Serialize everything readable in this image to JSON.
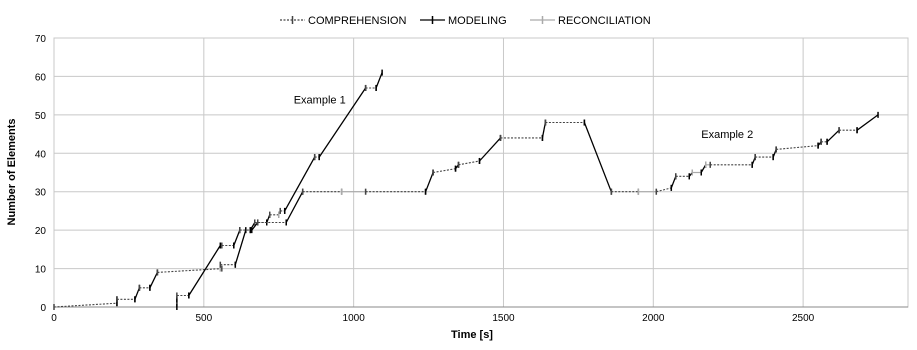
{
  "chart_data": {
    "type": "line",
    "title": "",
    "xlabel": "Time [s]",
    "ylabel": "Number of Elements",
    "xlim": [
      0,
      2850
    ],
    "ylim": [
      0,
      70
    ],
    "x_ticks": [
      0,
      500,
      1000,
      1500,
      2000,
      2500
    ],
    "y_ticks": [
      0,
      10,
      20,
      30,
      40,
      50,
      60,
      70
    ],
    "grid": true,
    "legend_position": "top-center",
    "colors": {
      "comprehension": "#444444",
      "modeling": "#000000",
      "reconciliation": "#aaaaaa",
      "grid": "#c8c8c8"
    },
    "legend": [
      "COMPREHENSION",
      "MODELING",
      "RECONCILIATION"
    ],
    "annotations": [
      {
        "text": "Example 1",
        "x": 800,
        "y": 53
      },
      {
        "text": "Example 2",
        "x": 2160,
        "y": 44
      }
    ],
    "series": [
      {
        "example": "Example 1",
        "segments": [
          {
            "kind": "comprehension",
            "points": [
              [
                0,
                0
              ],
              [
                210,
                1
              ]
            ]
          },
          {
            "kind": "modeling",
            "points": [
              [
                210,
                1
              ],
              [
                210,
                2
              ]
            ]
          },
          {
            "kind": "comprehension",
            "points": [
              [
                210,
                2
              ],
              [
                270,
                2
              ]
            ]
          },
          {
            "kind": "modeling",
            "points": [
              [
                270,
                2
              ],
              [
                285,
                5
              ]
            ]
          },
          {
            "kind": "comprehension",
            "points": [
              [
                285,
                5
              ],
              [
                320,
                5
              ]
            ]
          },
          {
            "kind": "modeling",
            "points": [
              [
                320,
                5
              ],
              [
                345,
                9
              ]
            ]
          },
          {
            "kind": "comprehension",
            "points": [
              [
                345,
                9
              ],
              [
                560,
                10
              ]
            ]
          },
          {
            "kind": "modeling",
            "points": [
              [
                410,
                0
              ],
              [
                410,
                2
              ]
            ]
          },
          {
            "kind": "comprehension",
            "points": [
              [
                410,
                3
              ],
              [
                450,
                3
              ]
            ]
          },
          {
            "kind": "modeling",
            "points": [
              [
                450,
                3
              ],
              [
                555,
                16
              ]
            ]
          },
          {
            "kind": "comprehension",
            "points": [
              [
                560,
                16
              ],
              [
                600,
                16
              ]
            ]
          },
          {
            "kind": "modeling",
            "points": [
              [
                600,
                16
              ],
              [
                620,
                20
              ]
            ]
          },
          {
            "kind": "reconciliation",
            "points": [
              [
                555,
                11
              ],
              [
                555,
                10
              ]
            ]
          },
          {
            "kind": "comprehension",
            "points": [
              [
                555,
                11
              ],
              [
                605,
                11
              ]
            ]
          },
          {
            "kind": "modeling",
            "points": [
              [
                605,
                11
              ],
              [
                640,
                20
              ]
            ]
          },
          {
            "kind": "comprehension",
            "points": [
              [
                620,
                20
              ],
              [
                655,
                20
              ]
            ]
          },
          {
            "kind": "modeling",
            "points": [
              [
                655,
                20
              ],
              [
                670,
                22
              ]
            ]
          },
          {
            "kind": "comprehension",
            "points": [
              [
                670,
                22
              ],
              [
                710,
                22
              ]
            ]
          },
          {
            "kind": "modeling",
            "points": [
              [
                710,
                22
              ],
              [
                720,
                24
              ]
            ]
          },
          {
            "kind": "comprehension",
            "points": [
              [
                720,
                24
              ],
              [
                750,
                24
              ]
            ]
          },
          {
            "kind": "reconciliation",
            "points": [
              [
                750,
                24
              ],
              [
                755,
                25
              ]
            ]
          },
          {
            "kind": "comprehension",
            "points": [
              [
                755,
                25
              ],
              [
                770,
                25
              ]
            ]
          },
          {
            "kind": "modeling",
            "points": [
              [
                660,
                20
              ],
              [
                680,
                22
              ]
            ]
          },
          {
            "kind": "comprehension",
            "points": [
              [
                680,
                22
              ],
              [
                775,
                22
              ]
            ]
          },
          {
            "kind": "modeling",
            "points": [
              [
                775,
                22
              ],
              [
                830,
                30
              ]
            ]
          },
          {
            "kind": "modeling",
            "points": [
              [
                770,
                25
              ],
              [
                870,
                39
              ]
            ]
          },
          {
            "kind": "comprehension",
            "points": [
              [
                870,
                39
              ],
              [
                885,
                39
              ]
            ]
          },
          {
            "kind": "modeling",
            "points": [
              [
                885,
                39
              ],
              [
                1040,
                57
              ]
            ]
          },
          {
            "kind": "comprehension",
            "points": [
              [
                1040,
                57
              ],
              [
                1075,
                57
              ]
            ]
          },
          {
            "kind": "modeling",
            "points": [
              [
                1075,
                57
              ],
              [
                1095,
                61
              ]
            ]
          }
        ]
      },
      {
        "example": "Example 2",
        "segments": [
          {
            "kind": "comprehension",
            "points": [
              [
                830,
                30
              ],
              [
                960,
                30
              ]
            ]
          },
          {
            "kind": "reconciliation",
            "points": [
              [
                960,
                30
              ],
              [
                1040,
                30
              ]
            ]
          },
          {
            "kind": "comprehension",
            "points": [
              [
                1040,
                30
              ],
              [
                1240,
                30
              ]
            ]
          },
          {
            "kind": "modeling",
            "points": [
              [
                1240,
                30
              ],
              [
                1265,
                35
              ]
            ]
          },
          {
            "kind": "comprehension",
            "points": [
              [
                1265,
                35
              ],
              [
                1340,
                36
              ]
            ]
          },
          {
            "kind": "modeling",
            "points": [
              [
                1340,
                36
              ],
              [
                1350,
                37
              ]
            ]
          },
          {
            "kind": "comprehension",
            "points": [
              [
                1350,
                37
              ],
              [
                1420,
                38
              ]
            ]
          },
          {
            "kind": "modeling",
            "points": [
              [
                1420,
                38
              ],
              [
                1490,
                44
              ]
            ]
          },
          {
            "kind": "comprehension",
            "points": [
              [
                1490,
                44
              ],
              [
                1630,
                44
              ]
            ]
          },
          {
            "kind": "modeling",
            "points": [
              [
                1630,
                44
              ],
              [
                1640,
                48
              ]
            ]
          },
          {
            "kind": "comprehension",
            "points": [
              [
                1640,
                48
              ],
              [
                1770,
                48
              ]
            ]
          },
          {
            "kind": "modeling",
            "points": [
              [
                1770,
                48
              ],
              [
                1860,
                30
              ]
            ]
          },
          {
            "kind": "comprehension",
            "points": [
              [
                1860,
                30
              ],
              [
                1950,
                30
              ]
            ]
          },
          {
            "kind": "reconciliation",
            "points": [
              [
                1950,
                30
              ],
              [
                2010,
                30
              ]
            ]
          },
          {
            "kind": "comprehension",
            "points": [
              [
                2010,
                30
              ],
              [
                2060,
                31
              ]
            ]
          },
          {
            "kind": "modeling",
            "points": [
              [
                2060,
                31
              ],
              [
                2075,
                34
              ]
            ]
          },
          {
            "kind": "comprehension",
            "points": [
              [
                2075,
                34
              ],
              [
                2120,
                34
              ]
            ]
          },
          {
            "kind": "modeling",
            "points": [
              [
                2120,
                34
              ],
              [
                2130,
                35
              ]
            ]
          },
          {
            "kind": "reconciliation",
            "points": [
              [
                2130,
                35
              ],
              [
                2160,
                35
              ]
            ]
          },
          {
            "kind": "modeling",
            "points": [
              [
                2160,
                35
              ],
              [
                2175,
                37
              ]
            ]
          },
          {
            "kind": "reconciliation",
            "points": [
              [
                2175,
                37
              ],
              [
                2190,
                37
              ]
            ]
          },
          {
            "kind": "comprehension",
            "points": [
              [
                2190,
                37
              ],
              [
                2330,
                37
              ]
            ]
          },
          {
            "kind": "modeling",
            "points": [
              [
                2330,
                37
              ],
              [
                2340,
                39
              ]
            ]
          },
          {
            "kind": "comprehension",
            "points": [
              [
                2340,
                39
              ],
              [
                2400,
                39
              ]
            ]
          },
          {
            "kind": "modeling",
            "points": [
              [
                2400,
                39
              ],
              [
                2410,
                41
              ]
            ]
          },
          {
            "kind": "comprehension",
            "points": [
              [
                2410,
                41
              ],
              [
                2550,
                42
              ]
            ]
          },
          {
            "kind": "modeling",
            "points": [
              [
                2550,
                42
              ],
              [
                2560,
                43
              ]
            ]
          },
          {
            "kind": "comprehension",
            "points": [
              [
                2560,
                43
              ],
              [
                2580,
                43
              ]
            ]
          },
          {
            "kind": "modeling",
            "points": [
              [
                2580,
                43
              ],
              [
                2620,
                46
              ]
            ]
          },
          {
            "kind": "comprehension",
            "points": [
              [
                2620,
                46
              ],
              [
                2680,
                46
              ]
            ]
          },
          {
            "kind": "modeling",
            "points": [
              [
                2680,
                46
              ],
              [
                2750,
                50
              ]
            ]
          }
        ]
      }
    ]
  }
}
